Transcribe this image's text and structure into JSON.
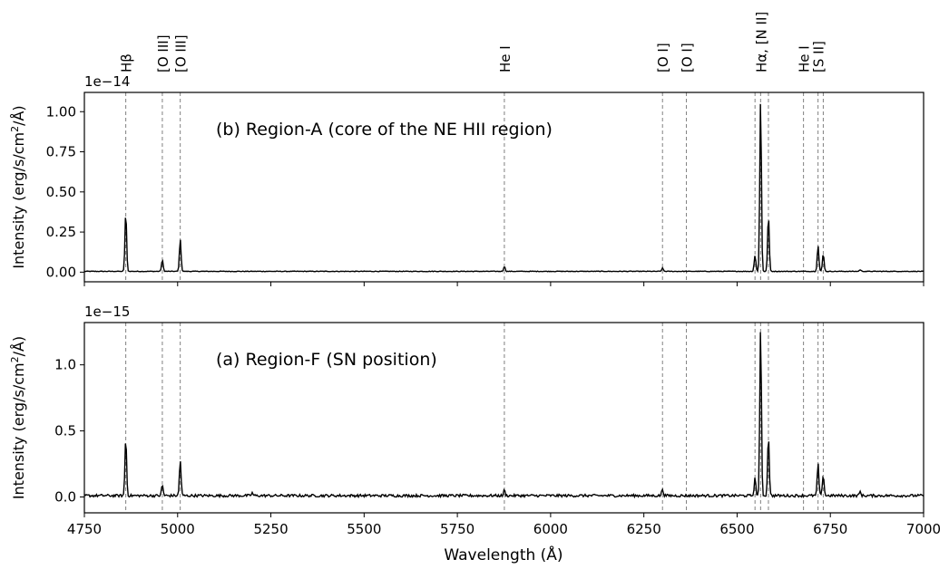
{
  "figure": {
    "xlabel": "Wavelength (Å)",
    "xlim": [
      4750,
      7000
    ],
    "xticks": [
      4750,
      5000,
      5250,
      5500,
      5750,
      6000,
      6250,
      6500,
      6750,
      7000
    ]
  },
  "line_labels": [
    {
      "label": "Hβ",
      "wavelength": 4861
    },
    {
      "label": "[O III]",
      "wavelength": 4959
    },
    {
      "label": "[O III]",
      "wavelength": 5007
    },
    {
      "label": "He I",
      "wavelength": 5876
    },
    {
      "label": "[O I]",
      "wavelength": 6300
    },
    {
      "label": "[O I]",
      "wavelength": 6364
    },
    {
      "label": "Hα, [N II]",
      "wavelength": 6563
    },
    {
      "label": "He I",
      "wavelength": 6678
    },
    {
      "label": "[S II]",
      "wavelength": 6717
    }
  ],
  "vlines": [
    4861,
    4959,
    5007,
    5876,
    6300,
    6364,
    6548,
    6563,
    6584,
    6678,
    6717,
    6731
  ],
  "chart_data": [
    {
      "type": "line",
      "panel": "top",
      "title": "(b) Region-A (core of the NE HII region)",
      "xlabel": "",
      "ylabel": "Intensity (erg/s/cm²/Å)",
      "ylabel_main": "Intensity (erg/s/cm",
      "ylabel_sup": "2",
      "ylabel_tail": "/Å)",
      "offset_text": "1e−14",
      "xlim": [
        4750,
        7000
      ],
      "ylim": [
        -0.06,
        1.12
      ],
      "yticks": [
        0.0,
        0.25,
        0.5,
        0.75,
        1.0
      ],
      "ytick_labels": [
        "0.00",
        "0.25",
        "0.50",
        "0.75",
        "1.00"
      ],
      "continuum": 0.005,
      "noise": 0.004,
      "peaks": [
        {
          "x": 4861,
          "y": 0.37
        },
        {
          "x": 4959,
          "y": 0.07
        },
        {
          "x": 5007,
          "y": 0.2
        },
        {
          "x": 5876,
          "y": 0.03
        },
        {
          "x": 6300,
          "y": 0.02
        },
        {
          "x": 6548,
          "y": 0.1
        },
        {
          "x": 6563,
          "y": 1.07
        },
        {
          "x": 6584,
          "y": 0.35
        },
        {
          "x": 6717,
          "y": 0.16
        },
        {
          "x": 6731,
          "y": 0.11
        },
        {
          "x": 6830,
          "y": 0.01
        }
      ]
    },
    {
      "type": "line",
      "panel": "bottom",
      "title": "(a) Region-F (SN position)",
      "xlabel": "Wavelength (Å)",
      "ylabel": "Intensity (erg/s/cm²/Å)",
      "ylabel_main": "Intensity (erg/s/cm",
      "ylabel_sup": "2",
      "ylabel_tail": "/Å)",
      "offset_text": "1e−15",
      "xlim": [
        4750,
        7000
      ],
      "ylim": [
        -0.12,
        1.32
      ],
      "yticks": [
        0.0,
        0.5,
        1.0
      ],
      "ytick_labels": [
        "0.0",
        "0.5",
        "1.0"
      ],
      "continuum": 0.01,
      "noise": 0.02,
      "peaks": [
        {
          "x": 4861,
          "y": 0.44
        },
        {
          "x": 4959,
          "y": 0.08
        },
        {
          "x": 5007,
          "y": 0.27
        },
        {
          "x": 5200,
          "y": 0.02
        },
        {
          "x": 5876,
          "y": 0.04
        },
        {
          "x": 6300,
          "y": 0.05
        },
        {
          "x": 6548,
          "y": 0.13
        },
        {
          "x": 6563,
          "y": 1.26
        },
        {
          "x": 6584,
          "y": 0.46
        },
        {
          "x": 6717,
          "y": 0.24
        },
        {
          "x": 6731,
          "y": 0.16
        },
        {
          "x": 6830,
          "y": 0.03
        }
      ]
    }
  ]
}
